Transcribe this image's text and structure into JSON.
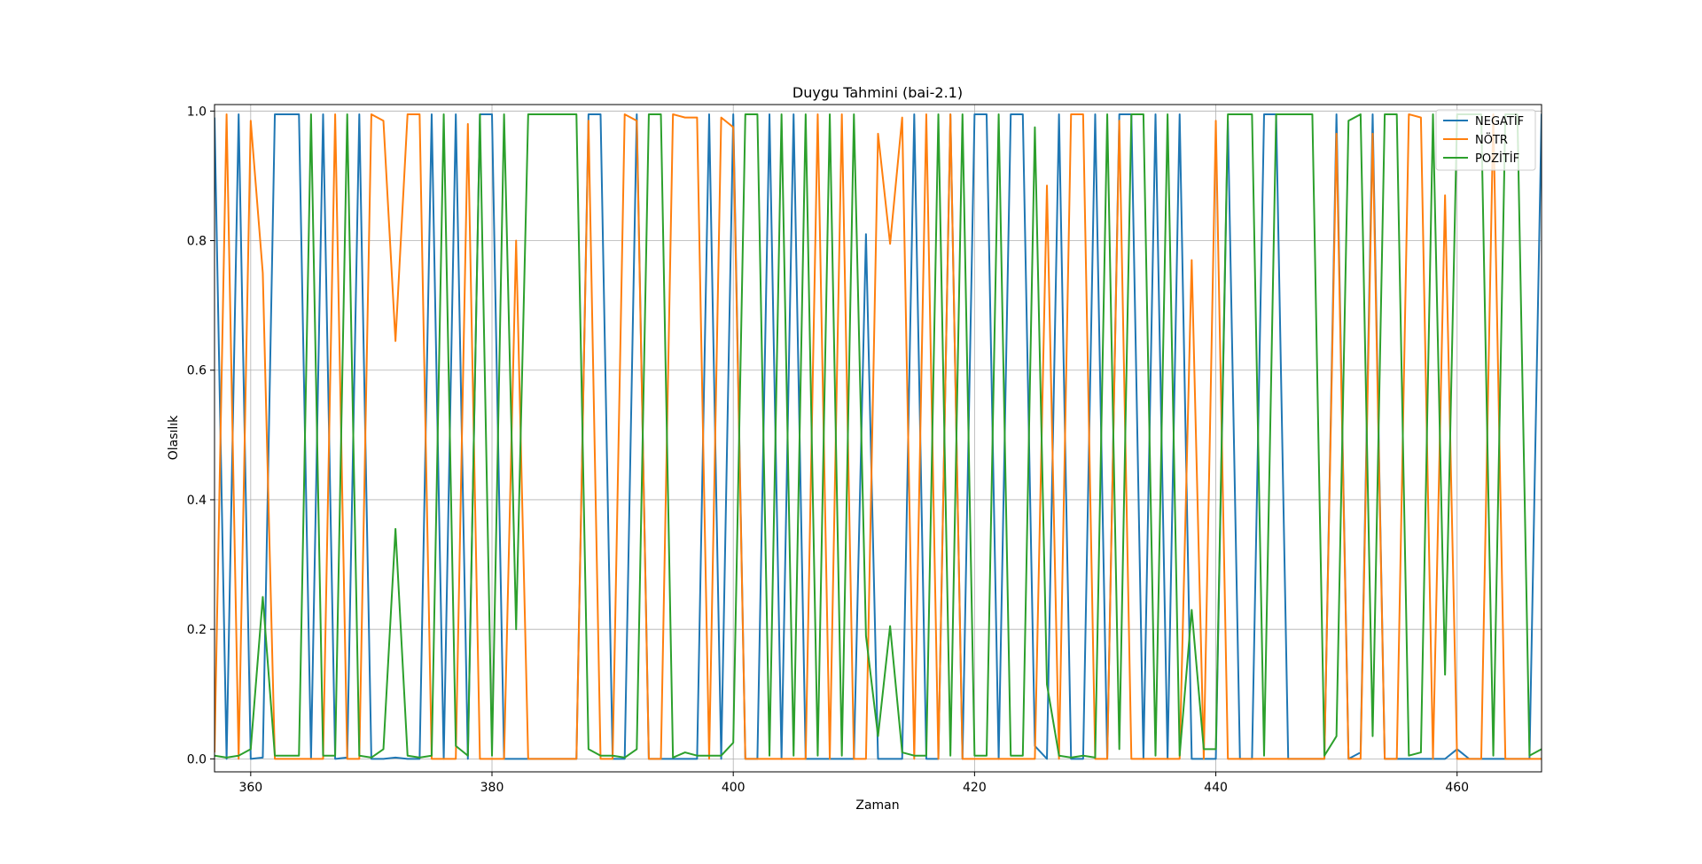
{
  "chart_data": {
    "type": "line",
    "title": "Duygu Tahmini (bai-2.1)",
    "xlabel": "Zaman",
    "ylabel": "Olasılık",
    "xlim": [
      357,
      467
    ],
    "ylim": [
      -0.02,
      1.01
    ],
    "xticks": [
      360,
      380,
      400,
      420,
      440,
      460
    ],
    "yticks": [
      0.0,
      0.2,
      0.4,
      0.6,
      0.8,
      1.0
    ],
    "ytick_labels": [
      "0.0",
      "0.2",
      "0.4",
      "0.6",
      "0.8",
      "1.0"
    ],
    "grid": true,
    "legend_position": "top-right",
    "x_start": 357,
    "series": [
      {
        "name": "NEGATİF",
        "color": "#1f77b4",
        "values": [
          0.99,
          0,
          0.995,
          0,
          0.002,
          0.995,
          0.995,
          0.995,
          0,
          0.995,
          0,
          0.002,
          0.995,
          0,
          0,
          0.002,
          0,
          0,
          0.995,
          0,
          0.995,
          0,
          0.995,
          0.995,
          0,
          0,
          0,
          0,
          0,
          0,
          0,
          0.995,
          0.995,
          0,
          0,
          0.995,
          0,
          0,
          0,
          0,
          0,
          0.995,
          0,
          0.995,
          0,
          0,
          0.995,
          0,
          0.995,
          0,
          0,
          0,
          0,
          0,
          0.81,
          0,
          0,
          0,
          0.995,
          0,
          0,
          0.995,
          0,
          0.995,
          0.995,
          0,
          0.995,
          0.995,
          0.02,
          0,
          0.995,
          0,
          0,
          0.995,
          0,
          0.995,
          0.995,
          0,
          0.995,
          0,
          0.995,
          0,
          0,
          0,
          0.985,
          0,
          0,
          0.995,
          0.995,
          0,
          0,
          0,
          0,
          0.995,
          0,
          0.01,
          0.995,
          0,
          0,
          0,
          0,
          0,
          0,
          0.015,
          0,
          0,
          0,
          0,
          0,
          0,
          0.995,
          0.985
        ]
      },
      {
        "name": "NÖTR",
        "color": "#ff7f0e",
        "values": [
          0.01,
          0.995,
          0,
          0.985,
          0.75,
          0,
          0,
          0,
          0,
          0,
          0.995,
          0,
          0,
          0.995,
          0.985,
          0.645,
          0.995,
          0.995,
          0,
          0,
          0,
          0.98,
          0,
          0,
          0,
          0.8,
          0,
          0,
          0,
          0,
          0,
          0.985,
          0,
          0,
          0.995,
          0.985,
          0,
          0,
          0.995,
          0.99,
          0.99,
          0,
          0.99,
          0.975,
          0,
          0,
          0,
          0,
          0,
          0,
          0.995,
          0,
          0.995,
          0,
          0,
          0.965,
          0.795,
          0.99,
          0,
          0.995,
          0,
          0.995,
          0,
          0,
          0,
          0,
          0,
          0,
          0,
          0.885,
          0,
          0.995,
          0.995,
          0,
          0,
          0.985,
          0,
          0,
          0,
          0,
          0,
          0.77,
          0,
          0.985,
          0,
          0,
          0,
          0,
          0,
          0,
          0,
          0,
          0,
          0.965,
          0,
          0,
          0.965,
          0,
          0,
          0.995,
          0.99,
          0,
          0.87,
          0,
          0,
          0,
          0.995,
          0,
          0,
          0,
          0
        ]
      },
      {
        "name": "POZİTİF",
        "color": "#2ca02c",
        "values": [
          0.005,
          0.002,
          0.005,
          0.015,
          0.25,
          0.005,
          0.005,
          0.005,
          0.995,
          0.005,
          0.005,
          0.995,
          0.005,
          0.002,
          0.015,
          0.355,
          0.005,
          0.002,
          0.005,
          0.995,
          0.02,
          0.005,
          0.995,
          0.005,
          0.995,
          0.2,
          0.995,
          0.995,
          0.995,
          0.995,
          0.995,
          0.015,
          0.005,
          0.005,
          0.002,
          0.015,
          0.995,
          0.995,
          0.002,
          0.01,
          0.005,
          0.005,
          0.005,
          0.025,
          0.995,
          0.995,
          0.005,
          0.995,
          0.005,
          0.995,
          0.005,
          0.995,
          0.005,
          0.995,
          0.19,
          0.035,
          0.205,
          0.01,
          0.005,
          0.005,
          0.995,
          0.005,
          0.995,
          0.005,
          0.005,
          0.995,
          0.005,
          0.005,
          0.975,
          0.115,
          0.005,
          0.002,
          0.005,
          0.002,
          0.995,
          0.015,
          0.995,
          0.995,
          0.005,
          0.995,
          0.005,
          0.23,
          0.015,
          0.015,
          0.995,
          0.995,
          0.995,
          0.005,
          0.995,
          0.995,
          0.995,
          0.995,
          0.005,
          0.035,
          0.985,
          0.995,
          0.035,
          0.995,
          0.995,
          0.005,
          0.01,
          0.995,
          0.13,
          0.995,
          0.995,
          0.995,
          0.005,
          0.995,
          0.995,
          0.005,
          0.015
        ]
      }
    ]
  }
}
